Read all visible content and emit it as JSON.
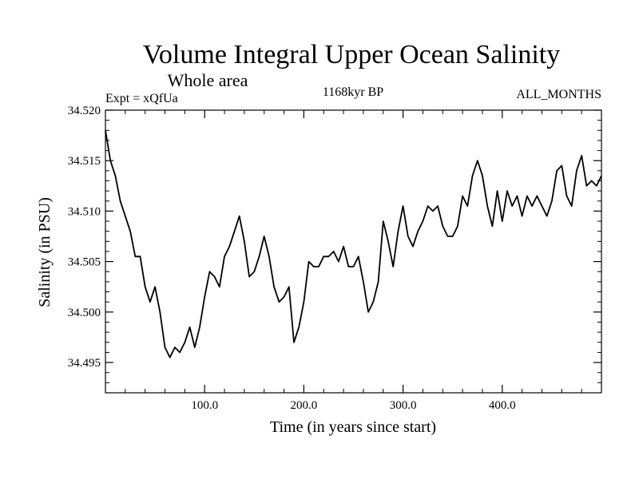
{
  "chart_data": {
    "type": "line",
    "title": "Volume Integral Upper Ocean Salinity",
    "subtitle": "Whole area",
    "left_label": "Expt = xQfUa",
    "center_label": "1168kyr BP",
    "right_label": "ALL_MONTHS",
    "xlabel": "Time (in years since start)",
    "ylabel": "Salinity (in PSU)",
    "xlim": [
      0,
      500
    ],
    "ylim": [
      34.492,
      34.52
    ],
    "x_ticks": [
      100,
      200,
      300,
      400
    ],
    "x_tick_labels": [
      "100.0",
      "200.0",
      "300.0",
      "400.0"
    ],
    "y_ticks": [
      34.495,
      34.5,
      34.505,
      34.51,
      34.515,
      34.52
    ],
    "y_tick_labels": [
      "34.495",
      "34.500",
      "34.505",
      "34.510",
      "34.515",
      "34.520"
    ],
    "grid": false,
    "series": [
      {
        "name": "Salinity",
        "x": [
          0,
          5,
          10,
          15,
          20,
          25,
          30,
          35,
          40,
          45,
          50,
          55,
          60,
          65,
          70,
          75,
          80,
          85,
          90,
          95,
          100,
          105,
          110,
          115,
          120,
          125,
          130,
          135,
          140,
          145,
          150,
          155,
          160,
          165,
          170,
          175,
          180,
          185,
          190,
          195,
          200,
          205,
          210,
          215,
          220,
          225,
          230,
          235,
          240,
          245,
          250,
          255,
          260,
          265,
          270,
          275,
          280,
          285,
          290,
          295,
          300,
          305,
          310,
          315,
          320,
          325,
          330,
          335,
          340,
          345,
          350,
          355,
          360,
          365,
          370,
          375,
          380,
          385,
          390,
          395,
          400,
          405,
          410,
          415,
          420,
          425,
          430,
          435,
          440,
          445,
          450,
          455,
          460,
          465,
          470,
          475,
          480,
          485,
          490,
          495,
          500
        ],
        "values": [
          34.518,
          34.515,
          34.5135,
          34.511,
          34.5095,
          34.508,
          34.5055,
          34.5055,
          34.5025,
          34.501,
          34.5025,
          34.5,
          34.4965,
          34.4955,
          34.4965,
          34.496,
          34.497,
          34.4985,
          34.4965,
          34.4985,
          34.5015,
          34.504,
          34.5035,
          34.5025,
          34.5055,
          34.5065,
          34.508,
          34.5095,
          34.507,
          34.5035,
          34.504,
          34.5055,
          34.5075,
          34.5055,
          34.5025,
          34.501,
          34.5015,
          34.5025,
          34.497,
          34.4985,
          34.501,
          34.505,
          34.5045,
          34.5045,
          34.5055,
          34.5055,
          34.506,
          34.505,
          34.5065,
          34.5045,
          34.5045,
          34.5055,
          34.503,
          34.5,
          34.501,
          34.503,
          34.509,
          34.507,
          34.5045,
          34.508,
          34.5105,
          34.5075,
          34.5065,
          34.508,
          34.509,
          34.5105,
          34.51,
          34.5105,
          34.5085,
          34.5075,
          34.5075,
          34.5085,
          34.5115,
          34.5105,
          34.5135,
          34.515,
          34.5135,
          34.5105,
          34.5085,
          34.512,
          34.509,
          34.512,
          34.5105,
          34.5115,
          34.5095,
          34.5115,
          34.5105,
          34.5115,
          34.5105,
          34.5095,
          34.511,
          34.514,
          34.5145,
          34.5115,
          34.5105,
          34.514,
          34.5155,
          34.5125,
          34.513,
          34.5125,
          34.5135
        ]
      }
    ]
  }
}
